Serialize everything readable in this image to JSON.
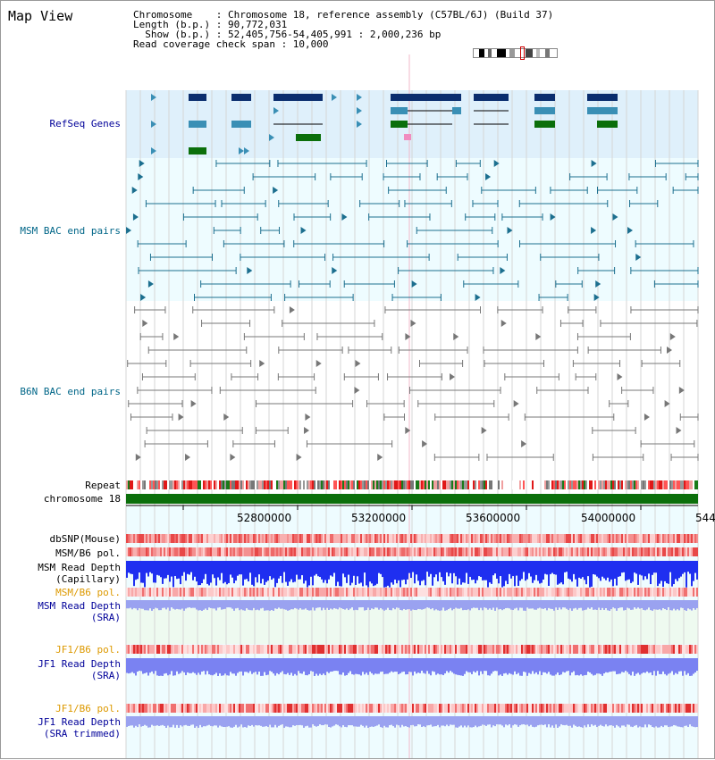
{
  "title": "Map View",
  "header": {
    "line1": "Chromosome    : Chromosome 18, reference assembly (C57BL/6J) (Build 37)",
    "line2": "Length (b.p.) : 90,772,031",
    "line3": "  Show (b.p.) : 52,405,756-54,405,991 : 2,000,236 bp",
    "line4": "Read coverage check span : 10,000"
  },
  "tracks": {
    "refseq": "RefSeq Genes",
    "msm_bac": "MSM BAC end pairs",
    "b6n_bac": "B6N BAC end pairs",
    "repeat": "Repeat",
    "chromosome": "chromosome 18",
    "dbsnp": "dbSNP(Mouse)",
    "msm_b6_pol": "MSM/B6 pol.",
    "msm_read_depth_cap_1": "MSM Read Depth",
    "msm_read_depth_cap_2": "(Capillary)",
    "msm_b6_pol_sra": "MSM/B6 pol.",
    "msm_read_depth_sra_1": "MSM Read Depth",
    "msm_read_depth_sra_2": "(SRA)",
    "jf1_b6_pol": "JF1/B6 pol.",
    "jf1_read_depth_1": "JF1 Read Depth",
    "jf1_read_depth_2": "(SRA)",
    "jf1_b6_pol_trim": "JF1/B6 pol.",
    "jf1_read_depth_trim_1": "JF1 Read Depth",
    "jf1_read_depth_trim_2": "(SRA trimmed)"
  },
  "axis": {
    "ticks": [
      "52800000",
      "53200000",
      "53600000",
      "54000000",
      "544"
    ]
  },
  "colors": {
    "navy_label": "#000099",
    "teal_label": "#006688",
    "orange_label": "#dd9900",
    "refseq_bg": "#dff0fb",
    "lightbg": "#eefcff",
    "gene_dark": "#0a2d6e",
    "gene_mid": "#3a8fb5",
    "gene_green": "#0b6f0b",
    "bac_msm": "#1c6f8f",
    "bac_b6n": "#777777"
  }
}
